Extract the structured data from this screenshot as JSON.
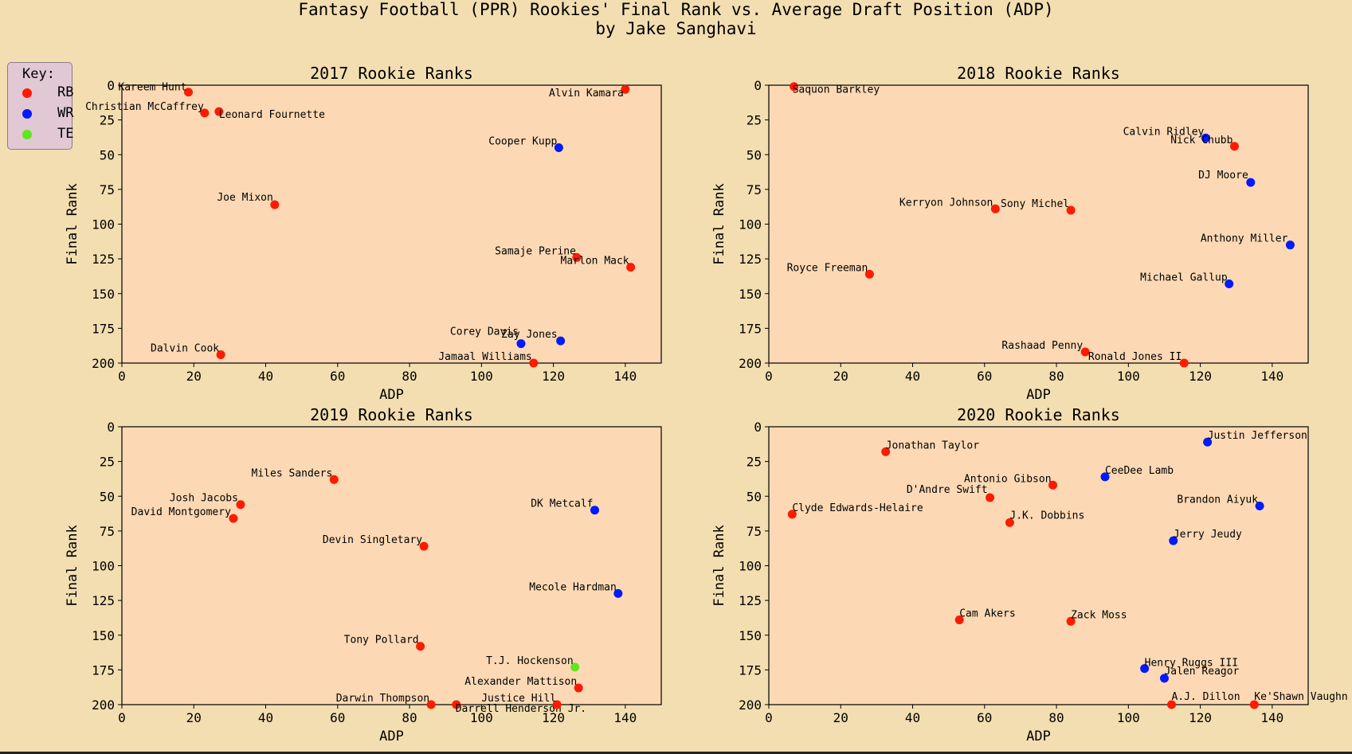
{
  "figure": {
    "title": "Fantasy Football (PPR) Rookies' Final Rank vs. Average Draft Position (ADP)\nby Jake Sanghavi"
  },
  "legend": {
    "title": "Key:",
    "items": [
      {
        "label": "RB",
        "color": "#ff1a00"
      },
      {
        "label": "WR",
        "color": "#0019ff"
      },
      {
        "label": "TE",
        "color": "#5fe61e"
      }
    ]
  },
  "colors": {
    "RB": "#ff1a00",
    "WR": "#0019ff",
    "TE": "#5fe61e",
    "plot_bg": "#fcd9b4"
  },
  "chart_data": [
    {
      "type": "scatter",
      "title": "2017 Rookie Ranks",
      "xlabel": "ADP",
      "ylabel": "Final Rank",
      "xlim": [
        0,
        150
      ],
      "ylim": [
        200,
        0
      ],
      "xticks": [
        0,
        20,
        40,
        60,
        80,
        100,
        120,
        140
      ],
      "yticks": [
        0,
        25,
        50,
        75,
        100,
        125,
        150,
        175,
        200
      ],
      "points": [
        {
          "name": "Kareem Hunt",
          "pos": "RB",
          "x": 18.5,
          "y": 5
        },
        {
          "name": "Christian McCaffrey",
          "pos": "RB",
          "x": 23,
          "y": 20
        },
        {
          "name": "Leonard Fournette",
          "pos": "RB",
          "x": 27,
          "y": 19
        },
        {
          "name": "Alvin Kamara",
          "pos": "RB",
          "x": 140,
          "y": 3
        },
        {
          "name": "Cooper Kupp",
          "pos": "WR",
          "x": 121.5,
          "y": 45
        },
        {
          "name": "Joe Mixon",
          "pos": "RB",
          "x": 42.5,
          "y": 86
        },
        {
          "name": "Samaje Perine",
          "pos": "RB",
          "x": 126.5,
          "y": 124
        },
        {
          "name": "Marlon Mack",
          "pos": "RB",
          "x": 141.5,
          "y": 131
        },
        {
          "name": "Dalvin Cook",
          "pos": "RB",
          "x": 27.5,
          "y": 194
        },
        {
          "name": "Corey Davis",
          "pos": "WR",
          "x": 111,
          "y": 186
        },
        {
          "name": "Zay Jones",
          "pos": "WR",
          "x": 122,
          "y": 184
        },
        {
          "name": "Jamaal Williams",
          "pos": "RB",
          "x": 114.5,
          "y": 200
        }
      ]
    },
    {
      "type": "scatter",
      "title": "2018 Rookie Ranks",
      "xlabel": "ADP",
      "ylabel": "Final Rank",
      "xlim": [
        0,
        150
      ],
      "ylim": [
        200,
        0
      ],
      "xticks": [
        0,
        20,
        40,
        60,
        80,
        100,
        120,
        140
      ],
      "yticks": [
        0,
        25,
        50,
        75,
        100,
        125,
        150,
        175,
        200
      ],
      "points": [
        {
          "name": "Saquon Barkley",
          "pos": "RB",
          "x": 7,
          "y": 1
        },
        {
          "name": "Calvin Ridley",
          "pos": "WR",
          "x": 121.5,
          "y": 38
        },
        {
          "name": "Nick Chubb",
          "pos": "RB",
          "x": 129.5,
          "y": 44
        },
        {
          "name": "DJ Moore",
          "pos": "WR",
          "x": 134,
          "y": 70
        },
        {
          "name": "Kerryon Johnson",
          "pos": "RB",
          "x": 63,
          "y": 89
        },
        {
          "name": "Sony Michel",
          "pos": "RB",
          "x": 84,
          "y": 90
        },
        {
          "name": "Anthony Miller",
          "pos": "WR",
          "x": 145,
          "y": 115
        },
        {
          "name": "Royce Freeman",
          "pos": "RB",
          "x": 28,
          "y": 136
        },
        {
          "name": "Michael Gallup",
          "pos": "WR",
          "x": 128,
          "y": 143
        },
        {
          "name": "Rashaad Penny",
          "pos": "RB",
          "x": 88,
          "y": 192
        },
        {
          "name": "Ronald Jones II",
          "pos": "RB",
          "x": 115.5,
          "y": 200
        }
      ]
    },
    {
      "type": "scatter",
      "title": "2019 Rookie Ranks",
      "xlabel": "ADP",
      "ylabel": "Final Rank",
      "xlim": [
        0,
        150
      ],
      "ylim": [
        200,
        0
      ],
      "xticks": [
        0,
        20,
        40,
        60,
        80,
        100,
        120,
        140
      ],
      "yticks": [
        0,
        25,
        50,
        75,
        100,
        125,
        150,
        175,
        200
      ],
      "points": [
        {
          "name": "Miles Sanders",
          "pos": "RB",
          "x": 59,
          "y": 38
        },
        {
          "name": "Josh Jacobs",
          "pos": "RB",
          "x": 33,
          "y": 56
        },
        {
          "name": "David Montgomery",
          "pos": "RB",
          "x": 31,
          "y": 66
        },
        {
          "name": "DK Metcalf",
          "pos": "WR",
          "x": 131.5,
          "y": 60
        },
        {
          "name": "Devin Singletary",
          "pos": "RB",
          "x": 84,
          "y": 86
        },
        {
          "name": "Mecole Hardman",
          "pos": "WR",
          "x": 138,
          "y": 120
        },
        {
          "name": "Tony Pollard",
          "pos": "RB",
          "x": 83,
          "y": 158
        },
        {
          "name": "T.J. Hockenson",
          "pos": "TE",
          "x": 126,
          "y": 173
        },
        {
          "name": "Alexander Mattison",
          "pos": "RB",
          "x": 127,
          "y": 188
        },
        {
          "name": "Darwin Thompson",
          "pos": "RB",
          "x": 86,
          "y": 200
        },
        {
          "name": "Darrell Henderson Jr.",
          "pos": "RB",
          "x": 93,
          "y": 200
        },
        {
          "name": "Justice Hill",
          "pos": "RB",
          "x": 121,
          "y": 200
        }
      ]
    },
    {
      "type": "scatter",
      "title": "2020 Rookie Ranks",
      "xlabel": "ADP",
      "ylabel": "Final Rank",
      "xlim": [
        0,
        150
      ],
      "ylim": [
        200,
        0
      ],
      "xticks": [
        0,
        20,
        40,
        60,
        80,
        100,
        120,
        140
      ],
      "yticks": [
        0,
        25,
        50,
        75,
        100,
        125,
        150,
        175,
        200
      ],
      "points": [
        {
          "name": "Justin Jefferson",
          "pos": "WR",
          "x": 122,
          "y": 11
        },
        {
          "name": "Jonathan Taylor",
          "pos": "RB",
          "x": 32.5,
          "y": 18
        },
        {
          "name": "CeeDee Lamb",
          "pos": "WR",
          "x": 93.5,
          "y": 36
        },
        {
          "name": "Antonio Gibson",
          "pos": "RB",
          "x": 79,
          "y": 42
        },
        {
          "name": "D'Andre Swift",
          "pos": "RB",
          "x": 61.5,
          "y": 51
        },
        {
          "name": "Brandon Aiyuk",
          "pos": "WR",
          "x": 136.5,
          "y": 57
        },
        {
          "name": "Clyde Edwards-Helaire",
          "pos": "RB",
          "x": 6.5,
          "y": 63
        },
        {
          "name": "J.K. Dobbins",
          "pos": "RB",
          "x": 67,
          "y": 69
        },
        {
          "name": "Jerry Jeudy",
          "pos": "WR",
          "x": 112.5,
          "y": 82
        },
        {
          "name": "Cam Akers",
          "pos": "RB",
          "x": 53,
          "y": 139
        },
        {
          "name": "Zack Moss",
          "pos": "RB",
          "x": 84,
          "y": 140
        },
        {
          "name": "Henry Ruggs III",
          "pos": "WR",
          "x": 104.5,
          "y": 174
        },
        {
          "name": "Jalen Reagor",
          "pos": "WR",
          "x": 110,
          "y": 181
        },
        {
          "name": "A.J. Dillon",
          "pos": "RB",
          "x": 112,
          "y": 200
        },
        {
          "name": "Ke'Shawn Vaughn",
          "pos": "RB",
          "x": 135,
          "y": 200
        }
      ]
    }
  ]
}
